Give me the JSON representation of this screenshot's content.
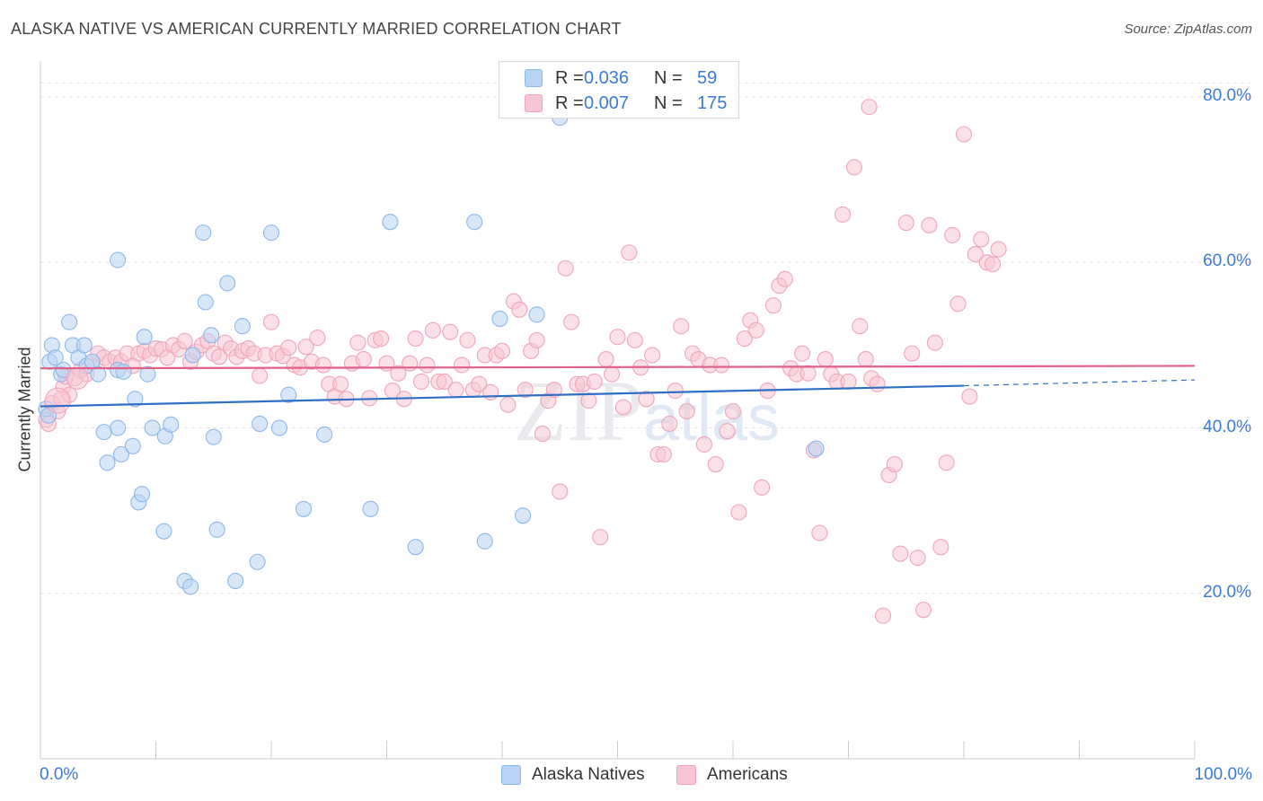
{
  "title": "ALASKA NATIVE VS AMERICAN CURRENTLY MARRIED CORRELATION CHART",
  "source": "Source: ZipAtlas.com",
  "legend": {
    "r_label": "R =",
    "n_label": "N =",
    "rows": [
      {
        "r": "0.036",
        "n": "59"
      },
      {
        "r": "0.007",
        "n": "175"
      }
    ]
  },
  "watermark": "ZIPatlas",
  "chart_data": {
    "type": "scatter",
    "title": "ALASKA NATIVE VS AMERICAN CURRENTLY MARRIED CORRELATION CHART",
    "xlabel": "",
    "ylabel": "Currently Married",
    "xlim": [
      0,
      100
    ],
    "ylim": [
      0,
      85
    ],
    "x_tick_labels": [
      "0.0%",
      "100.0%"
    ],
    "y_ticks": [
      20,
      40,
      60,
      80
    ],
    "y_tick_labels": [
      "20.0%",
      "40.0%",
      "60.0%",
      "80.0%"
    ],
    "grid": true,
    "legend_position": "top-center",
    "series": [
      {
        "name": "Alaska Natives",
        "color": "#8cb8ea",
        "fill": "#b8d3f3",
        "line_color": "#2f6fc6",
        "r": 0.036,
        "n": 59,
        "trend": {
          "x0": 0,
          "y0": 42.6,
          "x1": 80,
          "y1": 45.1,
          "dash_to_x": 100,
          "dash_to_y": 45.8
        },
        "points": [
          [
            0.5,
            42.3
          ],
          [
            0.8,
            48
          ],
          [
            1,
            50
          ],
          [
            1.3,
            48.5
          ],
          [
            1.8,
            46.5
          ],
          [
            2,
            47
          ],
          [
            2.5,
            52.8
          ],
          [
            2.8,
            50
          ],
          [
            3.3,
            48.5
          ],
          [
            3.8,
            50
          ],
          [
            4,
            47.5
          ],
          [
            4.5,
            48
          ],
          [
            5,
            46.5
          ],
          [
            6.7,
            60.3
          ],
          [
            6.7,
            40
          ],
          [
            6.7,
            47
          ],
          [
            5.5,
            39.5
          ],
          [
            5.8,
            35.8
          ],
          [
            7,
            36.8
          ],
          [
            7.2,
            46.8
          ],
          [
            8,
            37.8
          ],
          [
            8.2,
            43.5
          ],
          [
            8.5,
            31
          ],
          [
            8.8,
            32
          ],
          [
            9,
            51
          ],
          [
            9.3,
            46.5
          ],
          [
            9.7,
            40
          ],
          [
            10.7,
            27.5
          ],
          [
            10.8,
            39
          ],
          [
            11.3,
            40.4
          ],
          [
            12.5,
            21.5
          ],
          [
            13,
            20.8
          ],
          [
            13.2,
            48.8
          ],
          [
            14.1,
            63.6
          ],
          [
            14.3,
            55.2
          ],
          [
            14.8,
            51.2
          ],
          [
            15,
            38.9
          ],
          [
            15.3,
            27.7
          ],
          [
            16.2,
            57.5
          ],
          [
            16.9,
            21.5
          ],
          [
            17.5,
            52.3
          ],
          [
            18.8,
            23.8
          ],
          [
            19,
            40.5
          ],
          [
            20,
            63.6
          ],
          [
            20.7,
            40
          ],
          [
            21.5,
            44
          ],
          [
            22.8,
            30.2
          ],
          [
            24.6,
            39.2
          ],
          [
            28.6,
            30.2
          ],
          [
            30.3,
            64.9
          ],
          [
            32.5,
            25.6
          ],
          [
            37.6,
            64.9
          ],
          [
            38.5,
            26.3
          ],
          [
            39.8,
            53.2
          ],
          [
            41.8,
            29.4
          ],
          [
            43,
            53.7
          ],
          [
            45,
            77.5
          ],
          [
            67.2,
            37.5
          ],
          [
            0.7,
            41.5
          ]
        ]
      },
      {
        "name": "Americans",
        "color": "#f0a5bc",
        "fill": "#f7c6d4",
        "line_color": "#e0608a",
        "r": 0.007,
        "n": 175,
        "trend": {
          "x0": 0,
          "y0": 47.2,
          "x1": 100,
          "y1": 47.5
        },
        "points": [
          [
            0.5,
            41
          ],
          [
            1,
            43
          ],
          [
            1.5,
            42
          ],
          [
            2,
            45
          ],
          [
            2.5,
            44
          ],
          [
            3,
            46
          ],
          [
            3.5,
            47
          ],
          [
            4,
            46.5
          ],
          [
            4.5,
            48
          ],
          [
            5,
            49
          ],
          [
            5.5,
            48.5
          ],
          [
            6,
            48
          ],
          [
            6.5,
            48.5
          ],
          [
            7,
            48
          ],
          [
            7.5,
            49
          ],
          [
            8,
            47.5
          ],
          [
            8.5,
            49
          ],
          [
            9,
            49.3
          ],
          [
            9.5,
            48.8
          ],
          [
            10,
            49.6
          ],
          [
            10.5,
            49.5
          ],
          [
            11,
            48.5
          ],
          [
            11.5,
            50
          ],
          [
            12,
            49.5
          ],
          [
            12.5,
            50.5
          ],
          [
            13,
            48
          ],
          [
            13.5,
            49.2
          ],
          [
            14,
            50
          ],
          [
            14.5,
            50.5
          ],
          [
            15,
            49
          ],
          [
            15.5,
            48.6
          ],
          [
            16,
            50.3
          ],
          [
            16.5,
            49.6
          ],
          [
            17,
            48.6
          ],
          [
            17.5,
            49.3
          ],
          [
            18,
            49.6
          ],
          [
            18.5,
            49
          ],
          [
            19,
            46.3
          ],
          [
            19.5,
            48.8
          ],
          [
            20,
            52.8
          ],
          [
            20.5,
            49
          ],
          [
            21,
            48.7
          ],
          [
            21.5,
            49.7
          ],
          [
            22,
            47.6
          ],
          [
            22.5,
            47.3
          ],
          [
            23,
            49.8
          ],
          [
            23.5,
            48
          ],
          [
            24,
            50.9
          ],
          [
            24.5,
            47.6
          ],
          [
            25,
            45.3
          ],
          [
            25.5,
            43.8
          ],
          [
            26,
            45.3
          ],
          [
            26.5,
            43.5
          ],
          [
            27,
            47.8
          ],
          [
            27.5,
            50.3
          ],
          [
            28,
            48.3
          ],
          [
            28.5,
            43.6
          ],
          [
            29,
            50.6
          ],
          [
            29.5,
            50.8
          ],
          [
            30,
            47.8
          ],
          [
            30.5,
            44.5
          ],
          [
            31,
            46.6
          ],
          [
            31.5,
            43.5
          ],
          [
            32,
            47.8
          ],
          [
            32.5,
            50.8
          ],
          [
            33,
            45.6
          ],
          [
            33.5,
            47.6
          ],
          [
            34,
            51.8
          ],
          [
            34.5,
            45.6
          ],
          [
            35,
            45.6
          ],
          [
            35.5,
            51.6
          ],
          [
            36,
            44.6
          ],
          [
            36.5,
            47.6
          ],
          [
            37,
            50.6
          ],
          [
            37.5,
            44.6
          ],
          [
            38,
            45.3
          ],
          [
            38.5,
            48.8
          ],
          [
            39,
            44.3
          ],
          [
            39.5,
            48.8
          ],
          [
            40,
            49.3
          ],
          [
            40.5,
            42.8
          ],
          [
            41,
            55.3
          ],
          [
            41.5,
            54.3
          ],
          [
            42,
            44.6
          ],
          [
            42.5,
            49.3
          ],
          [
            43,
            50.6
          ],
          [
            43.5,
            39.3
          ],
          [
            44,
            43.3
          ],
          [
            44.5,
            44.6
          ],
          [
            45,
            32.3
          ],
          [
            45.5,
            59.3
          ],
          [
            46,
            52.8
          ],
          [
            46.5,
            45.3
          ],
          [
            47,
            45.3
          ],
          [
            47.5,
            43.3
          ],
          [
            48,
            45.6
          ],
          [
            48.5,
            26.8
          ],
          [
            49,
            48.3
          ],
          [
            49.5,
            46.5
          ],
          [
            50,
            51
          ],
          [
            50.5,
            42.5
          ],
          [
            51,
            61.2
          ],
          [
            51.5,
            50.6
          ],
          [
            52,
            47.3
          ],
          [
            52.5,
            43.5
          ],
          [
            53,
            48.8
          ],
          [
            53.5,
            36.8
          ],
          [
            54,
            36.8
          ],
          [
            54.5,
            40.5
          ],
          [
            55,
            44.5
          ],
          [
            55.5,
            52.3
          ],
          [
            56,
            42
          ],
          [
            56.5,
            49
          ],
          [
            57,
            48.3
          ],
          [
            57.5,
            38
          ],
          [
            58,
            47.6
          ],
          [
            58.5,
            35.6
          ],
          [
            59,
            47.6
          ],
          [
            59.5,
            39.6
          ],
          [
            60,
            42
          ],
          [
            60.5,
            29.8
          ],
          [
            61,
            50.8
          ],
          [
            61.5,
            53
          ],
          [
            62,
            51.8
          ],
          [
            62.5,
            32.8
          ],
          [
            63,
            44.5
          ],
          [
            63.5,
            54.8
          ],
          [
            64,
            57.2
          ],
          [
            64.5,
            58
          ],
          [
            65,
            47.2
          ],
          [
            65.5,
            46.5
          ],
          [
            66,
            49
          ],
          [
            66.5,
            46.6
          ],
          [
            67,
            37.3
          ],
          [
            67.5,
            27.3
          ],
          [
            68,
            48.3
          ],
          [
            68.5,
            46.5
          ],
          [
            69,
            45.6
          ],
          [
            69.5,
            65.8
          ],
          [
            70,
            45.6
          ],
          [
            70.5,
            71.5
          ],
          [
            71,
            52.3
          ],
          [
            71.5,
            48.3
          ],
          [
            72,
            46
          ],
          [
            72.5,
            45.3
          ],
          [
            73,
            17.3
          ],
          [
            73.5,
            34.3
          ],
          [
            74,
            35.6
          ],
          [
            74.5,
            24.8
          ],
          [
            75,
            64.8
          ],
          [
            75.5,
            49
          ],
          [
            76,
            24.3
          ],
          [
            76.5,
            18
          ],
          [
            77,
            64.5
          ],
          [
            77.5,
            50.3
          ],
          [
            78,
            25.6
          ],
          [
            78.5,
            35.8
          ],
          [
            79,
            63.3
          ],
          [
            79.5,
            55
          ],
          [
            80,
            75.5
          ],
          [
            80.5,
            43.8
          ],
          [
            81,
            61
          ],
          [
            81.5,
            62.8
          ],
          [
            82,
            60
          ],
          [
            82.5,
            59.8
          ],
          [
            83,
            61.6
          ],
          [
            71.8,
            78.8
          ],
          [
            0.7,
            40.5
          ],
          [
            1.8,
            43.5
          ],
          [
            2.2,
            46.2
          ]
        ]
      }
    ]
  },
  "bottom_legend": [
    {
      "label": "Alaska Natives"
    },
    {
      "label": "Americans"
    }
  ]
}
